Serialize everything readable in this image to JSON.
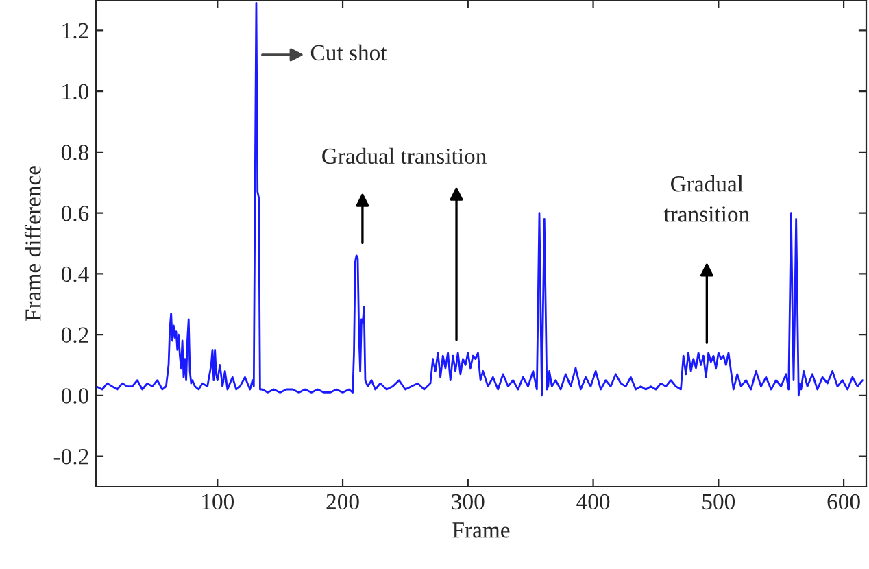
{
  "chart_data": {
    "type": "line",
    "xlabel": "Frame",
    "ylabel": "Frame difference",
    "x": [
      3,
      8,
      12,
      16,
      20,
      24,
      28,
      32,
      36,
      40,
      44,
      48,
      52,
      56,
      59,
      61,
      62,
      63,
      64,
      65,
      66,
      67,
      68,
      69,
      70,
      71,
      72,
      73,
      74,
      75,
      76,
      77,
      78,
      79,
      80,
      82,
      85,
      88,
      92,
      95,
      96,
      97,
      98,
      99,
      100,
      102,
      104,
      106,
      108,
      110,
      112,
      115,
      118,
      122,
      126,
      128,
      129,
      130,
      131,
      132,
      133,
      134,
      136,
      140,
      145,
      150,
      155,
      160,
      165,
      170,
      175,
      180,
      185,
      190,
      195,
      200,
      205,
      208,
      209,
      210,
      211,
      212,
      213,
      214,
      215,
      216,
      217,
      218,
      219,
      220,
      223,
      226,
      230,
      235,
      240,
      245,
      250,
      255,
      260,
      265,
      270,
      272,
      274,
      276,
      278,
      280,
      282,
      284,
      286,
      288,
      290,
      292,
      294,
      296,
      298,
      300,
      302,
      304,
      306,
      308,
      310,
      312,
      316,
      320,
      324,
      328,
      332,
      336,
      340,
      344,
      348,
      352,
      355,
      356,
      357,
      358,
      359,
      360,
      361,
      362,
      363,
      364,
      365,
      367,
      370,
      374,
      378,
      382,
      386,
      390,
      394,
      398,
      402,
      406,
      410,
      414,
      418,
      422,
      426,
      430,
      434,
      438,
      442,
      446,
      450,
      454,
      458,
      462,
      466,
      470,
      472,
      474,
      476,
      478,
      480,
      482,
      484,
      486,
      488,
      490,
      492,
      494,
      496,
      498,
      500,
      502,
      504,
      506,
      508,
      510,
      512,
      515,
      518,
      522,
      526,
      530,
      534,
      538,
      542,
      546,
      550,
      554,
      556,
      557,
      558,
      559,
      560,
      561,
      562,
      563,
      564,
      565,
      566,
      568,
      571,
      575,
      579,
      583,
      587,
      591,
      595,
      599,
      603,
      607,
      611,
      615
    ],
    "series": [
      {
        "color": "#1a1aff",
        "values": [
          0.03,
          0.02,
          0.04,
          0.03,
          0.02,
          0.04,
          0.03,
          0.03,
          0.05,
          0.02,
          0.04,
          0.03,
          0.05,
          0.02,
          0.03,
          0.1,
          0.22,
          0.27,
          0.18,
          0.23,
          0.19,
          0.21,
          0.15,
          0.2,
          0.13,
          0.09,
          0.18,
          0.06,
          0.12,
          0.05,
          0.18,
          0.25,
          0.08,
          0.04,
          0.05,
          0.03,
          0.02,
          0.04,
          0.03,
          0.1,
          0.15,
          0.05,
          0.15,
          0.07,
          0.05,
          0.1,
          0.03,
          0.08,
          0.02,
          0.04,
          0.06,
          0.02,
          0.03,
          0.06,
          0.02,
          0.05,
          0.03,
          0.67,
          1.29,
          0.67,
          0.65,
          0.02,
          0.02,
          0.01,
          0.02,
          0.01,
          0.02,
          0.02,
          0.01,
          0.02,
          0.01,
          0.02,
          0.01,
          0.01,
          0.02,
          0.01,
          0.02,
          0.01,
          0.14,
          0.44,
          0.46,
          0.45,
          0.2,
          0.08,
          0.25,
          0.24,
          0.29,
          0.05,
          0.04,
          0.03,
          0.05,
          0.02,
          0.04,
          0.02,
          0.03,
          0.05,
          0.02,
          0.03,
          0.04,
          0.02,
          0.04,
          0.12,
          0.08,
          0.14,
          0.06,
          0.13,
          0.09,
          0.14,
          0.05,
          0.13,
          0.08,
          0.14,
          0.07,
          0.12,
          0.1,
          0.14,
          0.09,
          0.13,
          0.12,
          0.14,
          0.05,
          0.08,
          0.03,
          0.06,
          0.02,
          0.07,
          0.03,
          0.05,
          0.02,
          0.06,
          0.03,
          0.08,
          0.02,
          0.3,
          0.6,
          0.3,
          0.0,
          0.3,
          0.58,
          0.3,
          0.02,
          0.03,
          0.08,
          0.03,
          0.05,
          0.02,
          0.07,
          0.03,
          0.09,
          0.02,
          0.06,
          0.03,
          0.08,
          0.02,
          0.05,
          0.03,
          0.07,
          0.04,
          0.03,
          0.06,
          0.02,
          0.03,
          0.02,
          0.03,
          0.02,
          0.04,
          0.03,
          0.05,
          0.03,
          0.02,
          0.13,
          0.07,
          0.14,
          0.08,
          0.12,
          0.09,
          0.14,
          0.1,
          0.13,
          0.06,
          0.14,
          0.11,
          0.13,
          0.09,
          0.14,
          0.12,
          0.13,
          0.1,
          0.14,
          0.08,
          0.02,
          0.07,
          0.03,
          0.05,
          0.02,
          0.08,
          0.03,
          0.06,
          0.02,
          0.05,
          0.03,
          0.07,
          0.02,
          0.3,
          0.6,
          0.3,
          0.05,
          0.3,
          0.58,
          0.3,
          0.0,
          0.04,
          0.02,
          0.08,
          0.03,
          0.07,
          0.02,
          0.06,
          0.04,
          0.08,
          0.03,
          0.05,
          0.02,
          0.06,
          0.03,
          0.05
        ]
      }
    ],
    "xlim": [
      3,
      618
    ],
    "ylim": [
      -0.3,
      1.3
    ],
    "xticks": [
      100,
      200,
      300,
      400,
      500,
      600
    ],
    "yticks": [
      {
        "value": -0.2,
        "label": "-0.2"
      },
      {
        "value": 0.0,
        "label": "0.0"
      },
      {
        "value": 0.2,
        "label": "0.2"
      },
      {
        "value": 0.4,
        "label": "0.4"
      },
      {
        "value": 0.6,
        "label": "0.6"
      },
      {
        "value": 0.8,
        "label": "0.8"
      },
      {
        "value": 1.0,
        "label": "1.0"
      },
      {
        "value": 1.2,
        "label": "1.2"
      }
    ],
    "annotations": [
      "Cut shot",
      "Gradual transition",
      "Gradual\ntransition"
    ],
    "grid": false,
    "legend": false
  }
}
